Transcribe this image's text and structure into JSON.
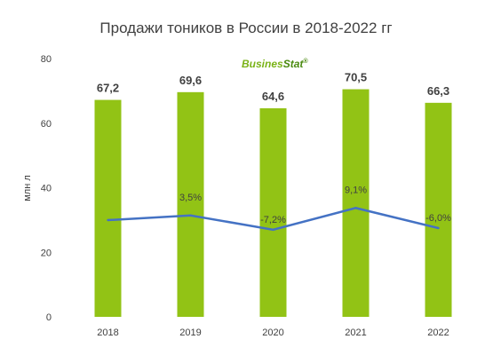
{
  "chart_data": {
    "type": "bar",
    "title": "Продажи тоников в России в 2018-2022 гг",
    "ylabel": "млн л",
    "xlabel": "",
    "ylim": [
      0,
      80
    ],
    "yticks": [
      "0",
      "20",
      "40",
      "60",
      "80"
    ],
    "categories": [
      "2018",
      "2019",
      "2020",
      "2021",
      "2022"
    ],
    "series": [
      {
        "type": "bar",
        "values": [
          67.2,
          69.6,
          64.6,
          70.5,
          66.3
        ],
        "labels": [
          "67,2",
          "69,6",
          "64,6",
          "70,5",
          "66,3"
        ],
        "color": "#92c315"
      },
      {
        "type": "line",
        "values": [
          null,
          3.5,
          -7.2,
          9.1,
          -6.0
        ],
        "labels": [
          "",
          "3,5%",
          "-7,2%",
          "9,1%",
          "-6,0%"
        ],
        "color": "#4472c4"
      }
    ],
    "grid": false,
    "legend": "none"
  },
  "logo": {
    "text_part1": "Busines",
    "text_part2": "Stat",
    "mark": "®",
    "color1": "#7ab317",
    "color2": "#4a8a10"
  }
}
